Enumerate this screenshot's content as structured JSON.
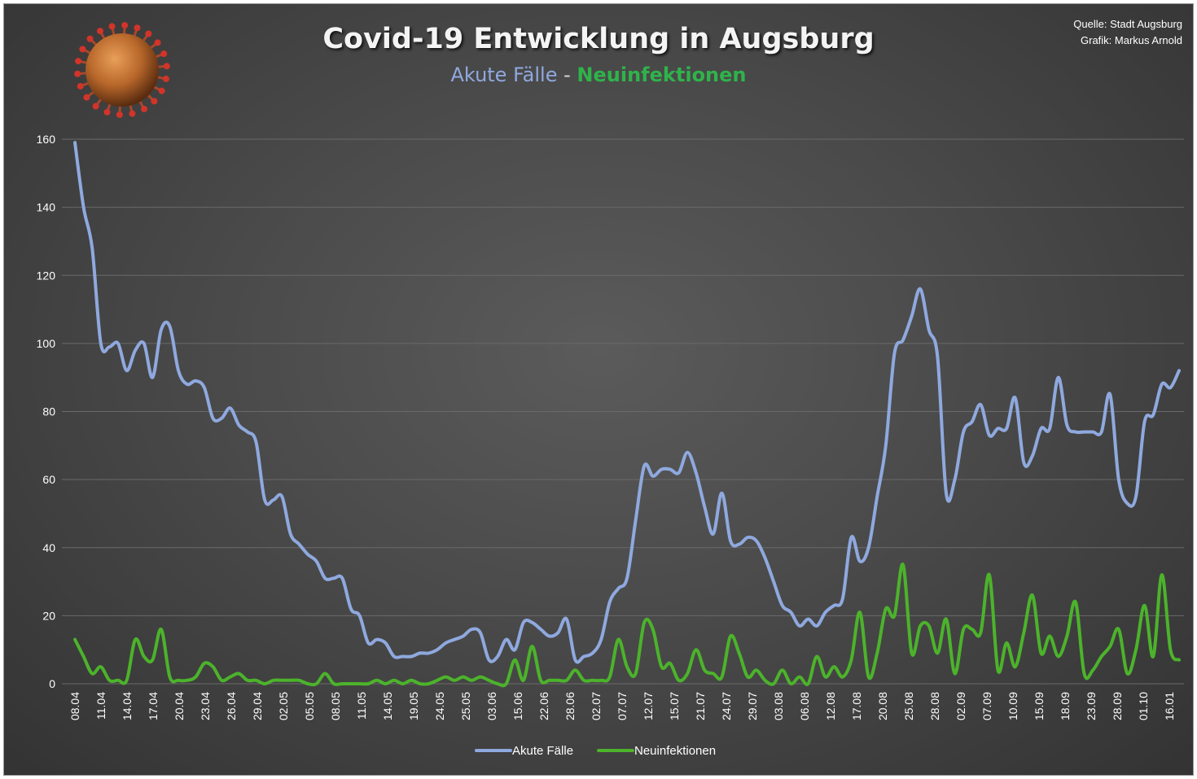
{
  "header": {
    "title": "Covid-19 Entwicklung in Augsburg",
    "subtitle_a": "Akute Fälle",
    "subtitle_sep": " - ",
    "subtitle_b": "Neuinfektionen",
    "source": "Quelle: Stadt Augsburg",
    "author": "Grafik: Markus Arnold"
  },
  "icons": {
    "logo": "coronavirus-icon"
  },
  "colors": {
    "akute": "#8fa9df",
    "neu": "#4cb32b",
    "grid": "#6a6a6a"
  },
  "chart_data": {
    "type": "line",
    "title": "Covid-19 Entwicklung in Augsburg",
    "ylim": [
      0,
      160
    ],
    "yticks": [
      0,
      20,
      40,
      60,
      80,
      100,
      120,
      140,
      160
    ],
    "grid": true,
    "legend_position": "bottom",
    "x_tick_labels": [
      "08.04",
      "11.04",
      "14.04",
      "17.04",
      "20.04",
      "23.04",
      "26.04",
      "29.04",
      "02.05",
      "05.05",
      "08.05",
      "11.05",
      "14.05",
      "19.05",
      "24.05",
      "25.05",
      "03.06",
      "15.06",
      "22.06",
      "28.06",
      "02.07",
      "07.07",
      "12.07",
      "15.07",
      "21.07",
      "24.07",
      "29.07",
      "03.08",
      "06.08",
      "12.08",
      "17.08",
      "20.08",
      "25.08",
      "28.08",
      "02.09",
      "07.09",
      "10.09",
      "15.09",
      "18.09",
      "23.09",
      "28.09",
      "01.10",
      "16.01"
    ],
    "series": [
      {
        "name": "Akute Fälle",
        "values": [
          159,
          140,
          128,
          100,
          99,
          100,
          92,
          98,
          100,
          90,
          104,
          105,
          92,
          88,
          89,
          87,
          78,
          78,
          81,
          76,
          74,
          71,
          54,
          54,
          55,
          44,
          41,
          38,
          36,
          31,
          31,
          31,
          22,
          20,
          12,
          13,
          12,
          8,
          8,
          8,
          9,
          9,
          10,
          12,
          13,
          14,
          16,
          15,
          7,
          8,
          13,
          10,
          18,
          18,
          16,
          14,
          15,
          19,
          7,
          8,
          9,
          13,
          24,
          28,
          31,
          48,
          64,
          61,
          63,
          63,
          62,
          68,
          62,
          52,
          44,
          56,
          42,
          41,
          43,
          42,
          37,
          30,
          23,
          21,
          17,
          19,
          17,
          21,
          23,
          25,
          43,
          36,
          40,
          55,
          70,
          97,
          101,
          108,
          116,
          104,
          96,
          56,
          60,
          74,
          77,
          82,
          73,
          75,
          75,
          84,
          65,
          67,
          75,
          75,
          90,
          76,
          74,
          74,
          74,
          74,
          85,
          60,
          53,
          55,
          77,
          79,
          88,
          87,
          92
        ]
      },
      {
        "name": "Neuinfektionen",
        "values": [
          13,
          8,
          3,
          5,
          1,
          1,
          1,
          13,
          8,
          7,
          16,
          2,
          1,
          1,
          2,
          6,
          5,
          1,
          2,
          3,
          1,
          1,
          0,
          1,
          1,
          1,
          1,
          0,
          0,
          3,
          0,
          0,
          0,
          0,
          0,
          1,
          0,
          1,
          0,
          1,
          0,
          0,
          1,
          2,
          1,
          2,
          1,
          2,
          1,
          0,
          0,
          7,
          1,
          11,
          1,
          1,
          1,
          1,
          4,
          1,
          1,
          1,
          2,
          13,
          5,
          3,
          18,
          16,
          5,
          6,
          1,
          3,
          10,
          4,
          3,
          2,
          14,
          9,
          2,
          4,
          1,
          0,
          4,
          0,
          2,
          0,
          8,
          2,
          5,
          2,
          7,
          21,
          2,
          9,
          22,
          20,
          35,
          9,
          17,
          17,
          9,
          19,
          3,
          16,
          16,
          15,
          32,
          4,
          12,
          5,
          15,
          26,
          9,
          14,
          8,
          14,
          24,
          3,
          4,
          8,
          11,
          16,
          3,
          10,
          23,
          8,
          32,
          10,
          7
        ]
      }
    ]
  }
}
